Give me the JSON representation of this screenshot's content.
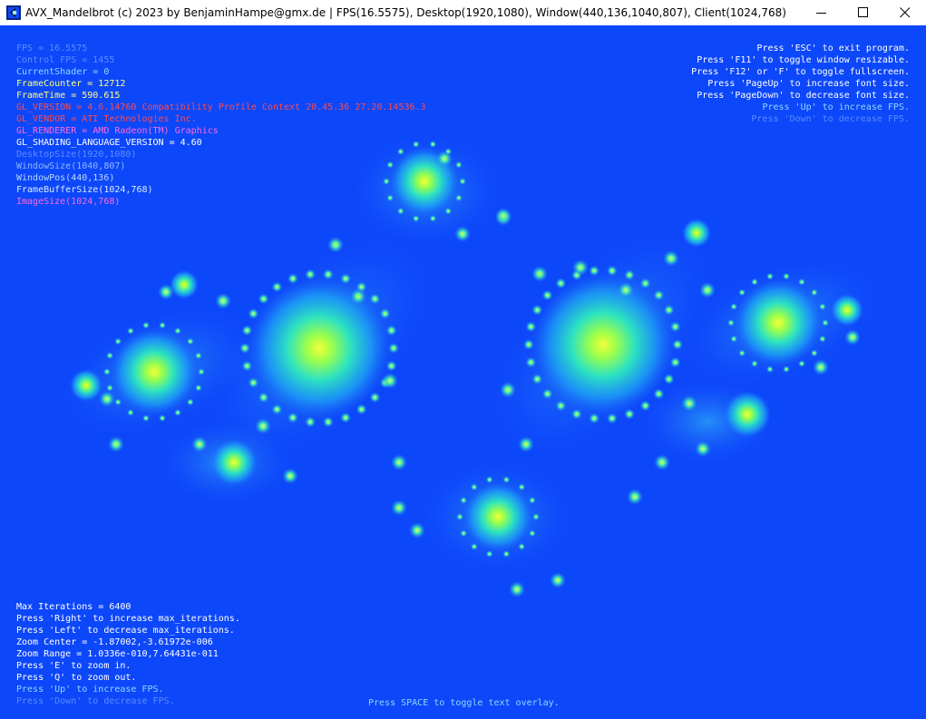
{
  "window": {
    "title": "AVX_Mandelbrot (c) 2023 by BenjaminHampe@gmx.de | FPS(16.5575), Desktop(1920,1080), Window(440,136,1040,807), Client(1024,768)",
    "app_icon": "app-window-icon",
    "controls": [
      "minimize-icon",
      "maximize-icon",
      "close-icon"
    ]
  },
  "colors": {
    "background": "#0d47fa",
    "dim_text": "#5a8cff",
    "light_blue_text": "#8fd8ff",
    "white_text": "#ffffff",
    "yellow_text": "#ffff7a",
    "red_text": "#ff4a4a",
    "pink_text": "#ff6adc"
  },
  "overlay_left": [
    {
      "text": "FPS = 16.5575",
      "color": "#5a8cff"
    },
    {
      "text": "Control FPS = 1455",
      "color": "#5a8cff"
    },
    {
      "text": "CurrentShader = 0",
      "color": "#8fd8ff"
    },
    {
      "text": "FrameCounter = 12712",
      "color": "#ffff7a"
    },
    {
      "text": "FrameTime = 590.615",
      "color": "#ffff7a"
    },
    {
      "text": "GL_VERSION = 4.6.14760 Compatibility Profile Context 20.45.36 27.20.14536.3",
      "color": "#ff4a4a"
    },
    {
      "text": "GL_VENDOR = ATI Technologies Inc.",
      "color": "#ff4a4a"
    },
    {
      "text": "GL_RENDERER = AMD Radeon(TM) Graphics",
      "color": "#ff6adc"
    },
    {
      "text": "GL_SHADING_LANGUAGE_VERSION = 4.60",
      "color": "#ffffff"
    },
    {
      "text": "DesktopSize(1920,1080)",
      "color": "#5a8cff"
    },
    {
      "text": "WindowSize(1040,807)",
      "color": "#8fb8ff"
    },
    {
      "text": "WindowPos(440,136)",
      "color": "#b8d8ff"
    },
    {
      "text": "FrameBufferSize(1024,768)",
      "color": "#d8ecff"
    },
    {
      "text": "ImageSize(1024,768)",
      "color": "#ff6adc"
    }
  ],
  "overlay_right": [
    {
      "text": "Press 'ESC' to exit program.",
      "color": "#ffffff"
    },
    {
      "text": "Press 'F11' to toggle window resizable.",
      "color": "#ffffff"
    },
    {
      "text": "Press 'F12' or 'F' to toggle fullscreen.",
      "color": "#ffffff"
    },
    {
      "text": "Press 'PageUp' to increase font size.",
      "color": "#ffffff"
    },
    {
      "text": "Press 'PageDown' to decrease font size.",
      "color": "#ffffff"
    },
    {
      "text": "Press 'Up' to increase FPS.",
      "color": "#8fd8ff"
    },
    {
      "text": "Press 'Down' to decrease FPS.",
      "color": "#5a8cff"
    }
  ],
  "overlay_bottom": [
    {
      "text": "Max Iterations = 6400",
      "color": "#ffffff"
    },
    {
      "text": "Press 'Right' to increase max_iterations.",
      "color": "#ffffff"
    },
    {
      "text": "Press 'Left' to decrease max_iterations.",
      "color": "#ffffff"
    },
    {
      "text": "Zoom Center = -1.87002,-3.61972e-006",
      "color": "#ffffff"
    },
    {
      "text": "Zoom Range = 1.0336e-010,7.64431e-011",
      "color": "#ffffff"
    },
    {
      "text": "Press 'E' to zoom in.",
      "color": "#ffffff"
    },
    {
      "text": "Press 'Q' to zoom out.",
      "color": "#ffffff"
    },
    {
      "text": "Press 'Up' to increase FPS.",
      "color": "#8fd8ff"
    },
    {
      "text": "Press 'Down' to decrease FPS.",
      "color": "#5a8cff"
    }
  ],
  "overlay_center": {
    "text": "Press SPACE to toggle text overlay.",
    "color": "#8fd8ff"
  }
}
